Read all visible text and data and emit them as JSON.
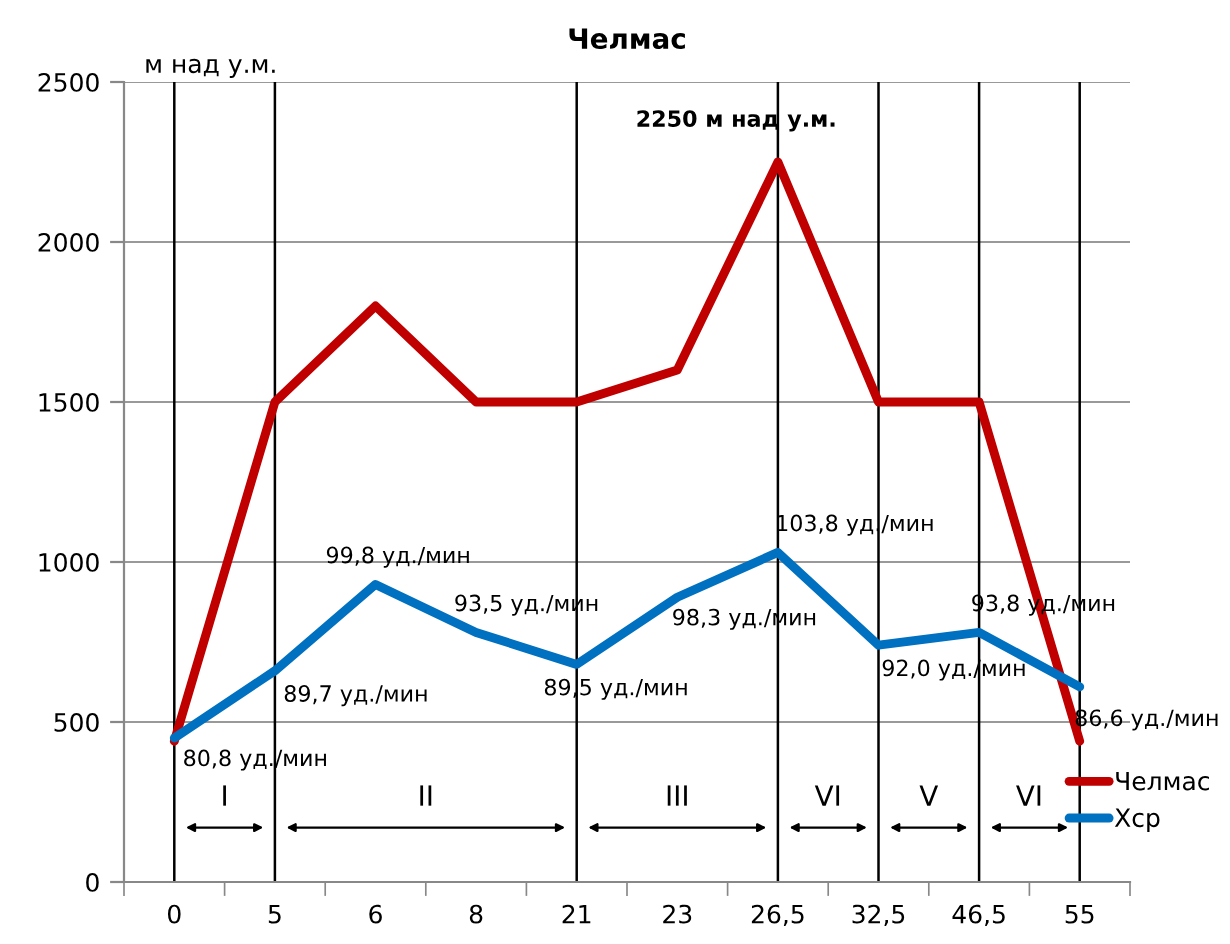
{
  "chart_data": {
    "type": "line",
    "title": "Челмас",
    "ylabel": "м над у.м.",
    "categories": [
      "0",
      "5",
      "6",
      "8",
      "21",
      "23",
      "26,5",
      "32,5",
      "46,5",
      "55"
    ],
    "series": [
      {
        "name": "Челмас",
        "color": "#c00000",
        "values": [
          440,
          1500,
          1800,
          1500,
          1500,
          1600,
          2250,
          1500,
          1500,
          440
        ]
      },
      {
        "name": "Хср",
        "color": "#0070c0",
        "values": [
          450,
          660,
          930,
          780,
          680,
          890,
          1030,
          740,
          780,
          610
        ]
      }
    ],
    "ylim": [
      0,
      2500
    ],
    "yticks": [
      0,
      500,
      1000,
      1500,
      2000,
      2500
    ],
    "grid": "y",
    "legend": "bottom right",
    "marker": "none",
    "line_style": "solid",
    "ref_lines": [
      {
        "axis": "x",
        "value": "0",
        "color": "#000000"
      },
      {
        "axis": "x",
        "value": "5",
        "color": "#000000"
      },
      {
        "axis": "x",
        "value": "21",
        "color": "#000000"
      },
      {
        "axis": "x",
        "value": "26,5",
        "color": "#000000"
      },
      {
        "axis": "x",
        "value": "32,5",
        "color": "#000000"
      },
      {
        "axis": "x",
        "value": "46,5",
        "color": "#000000"
      },
      {
        "axis": "x",
        "value": "55",
        "color": "#000000"
      }
    ],
    "annotations": [
      "I",
      "II",
      "III",
      "VI",
      "V",
      "VI",
      {
        "text": "2250 м над у.м.",
        "x": "26,5",
        "y": 2250
      },
      {
        "text": "80,8 уд./мин",
        "x": "0",
        "y": 450
      },
      {
        "text": "89,7 уд./мин",
        "x": "5",
        "y": 660
      },
      {
        "text": "99,8 уд./мин",
        "x": "6",
        "y": 930
      },
      {
        "text": "93,5 уд./мин",
        "x": "8",
        "y": 780
      },
      {
        "text": "89,5 уд./мин",
        "x": "21",
        "y": 680
      },
      {
        "text": "98,3 уд./мин",
        "x": "23",
        "y": 890
      },
      {
        "text": "103,8 уд./мин",
        "x": "26,5",
        "y": 1030
      },
      {
        "text": "92,0 уд./мин",
        "x": "32,5",
        "y": 740
      },
      {
        "text": "93,8 уд./мин",
        "x": "46,5",
        "y": 780
      },
      {
        "text": "86,6 уд./мин",
        "x": "55",
        "y": 610
      }
    ]
  }
}
